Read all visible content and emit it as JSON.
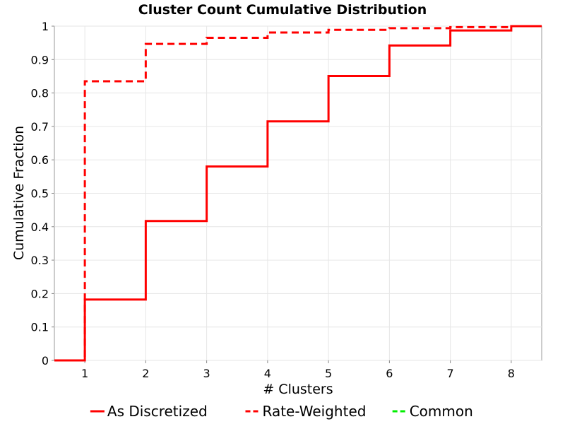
{
  "chart_data": {
    "type": "line",
    "title": "Cluster Count Cumulative Distribution",
    "xlabel": "# Clusters",
    "ylabel": "Cumulative Fraction",
    "xlim": [
      0.5,
      8.5
    ],
    "ylim": [
      0,
      1
    ],
    "x_ticks": [
      "1",
      "2",
      "3",
      "4",
      "5",
      "6",
      "7",
      "8"
    ],
    "y_ticks": [
      "0",
      "0.1",
      "0.2",
      "0.3",
      "0.4",
      "0.5",
      "0.6",
      "0.7",
      "0.8",
      "0.9",
      "1"
    ],
    "grid": true,
    "legend_position": "bottom",
    "step": true,
    "series": [
      {
        "name": "As Discretized",
        "style": "solid",
        "color": "#ff0000",
        "x": [
          0.5,
          1,
          2,
          3,
          4,
          5,
          6,
          7,
          8,
          8.5
        ],
        "values": [
          0,
          0.182,
          0.417,
          0.58,
          0.715,
          0.851,
          0.942,
          0.987,
          1.0,
          1.0
        ]
      },
      {
        "name": "Rate-Weighted",
        "style": "dashed",
        "color": "#ff0000",
        "x": [
          0.5,
          1,
          2,
          3,
          4,
          5,
          6,
          7,
          8,
          8.5
        ],
        "values": [
          0,
          0.835,
          0.947,
          0.965,
          0.981,
          0.989,
          0.994,
          0.997,
          1.0,
          1.0
        ]
      },
      {
        "name": "Common",
        "style": "dashed",
        "color": "#00ee00",
        "x": [],
        "values": []
      }
    ]
  }
}
